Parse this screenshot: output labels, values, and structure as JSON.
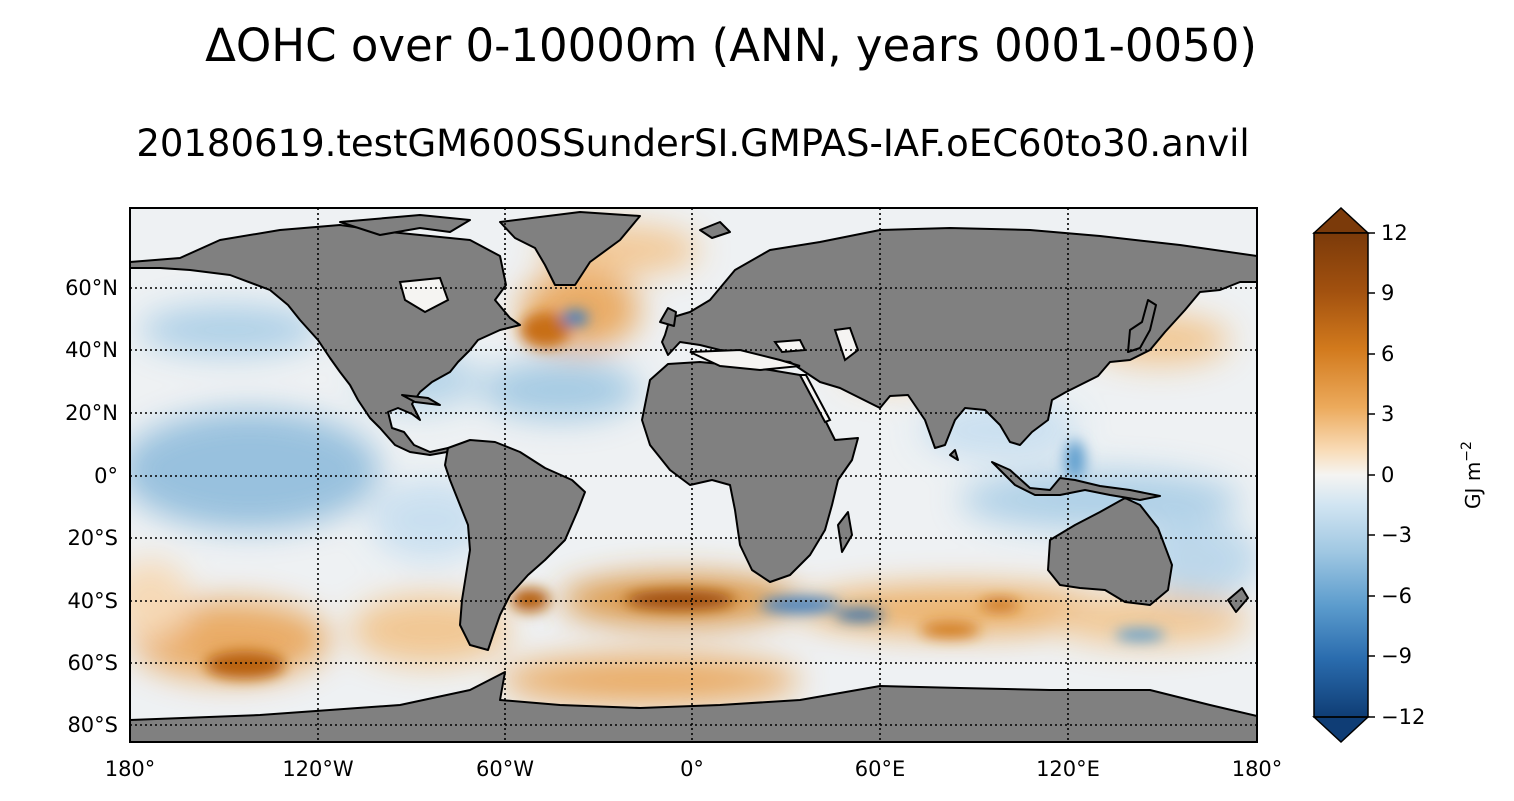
{
  "figure": {
    "title": "ΔOHC over 0-10000m (ANN, years 0001-0050)",
    "subtitle": "20180619.testGM600SSunderSI.GMPAS-IAF.oEC60to30.anvil"
  },
  "map": {
    "projection": "equirectangular",
    "lon_ticks": [
      "180°",
      "120°W",
      "60°W",
      "0°",
      "60°E",
      "120°E",
      "180°"
    ],
    "lat_ticks": [
      "60°N",
      "40°N",
      "20°N",
      "0°",
      "20°S",
      "40°S",
      "60°S",
      "80°S"
    ],
    "gridlines": "dotted",
    "land_color": "#808080",
    "coastline_color": "#000000"
  },
  "colorbar": {
    "label": "GJ m",
    "label_exponent": "−2",
    "ticks": [
      "12",
      "9",
      "6",
      "3",
      "0",
      "−3",
      "−6",
      "−9",
      "−12"
    ],
    "min": -12,
    "max": 12,
    "extend": "both",
    "colors": [
      "#7b3a0a",
      "#a2510f",
      "#d27a1d",
      "#ecaa5c",
      "#f9dcb8",
      "#f5f4f2",
      "#d2e5f2",
      "#9fc7e2",
      "#5c9ccd",
      "#2a6cae",
      "#0f3d75"
    ]
  }
}
